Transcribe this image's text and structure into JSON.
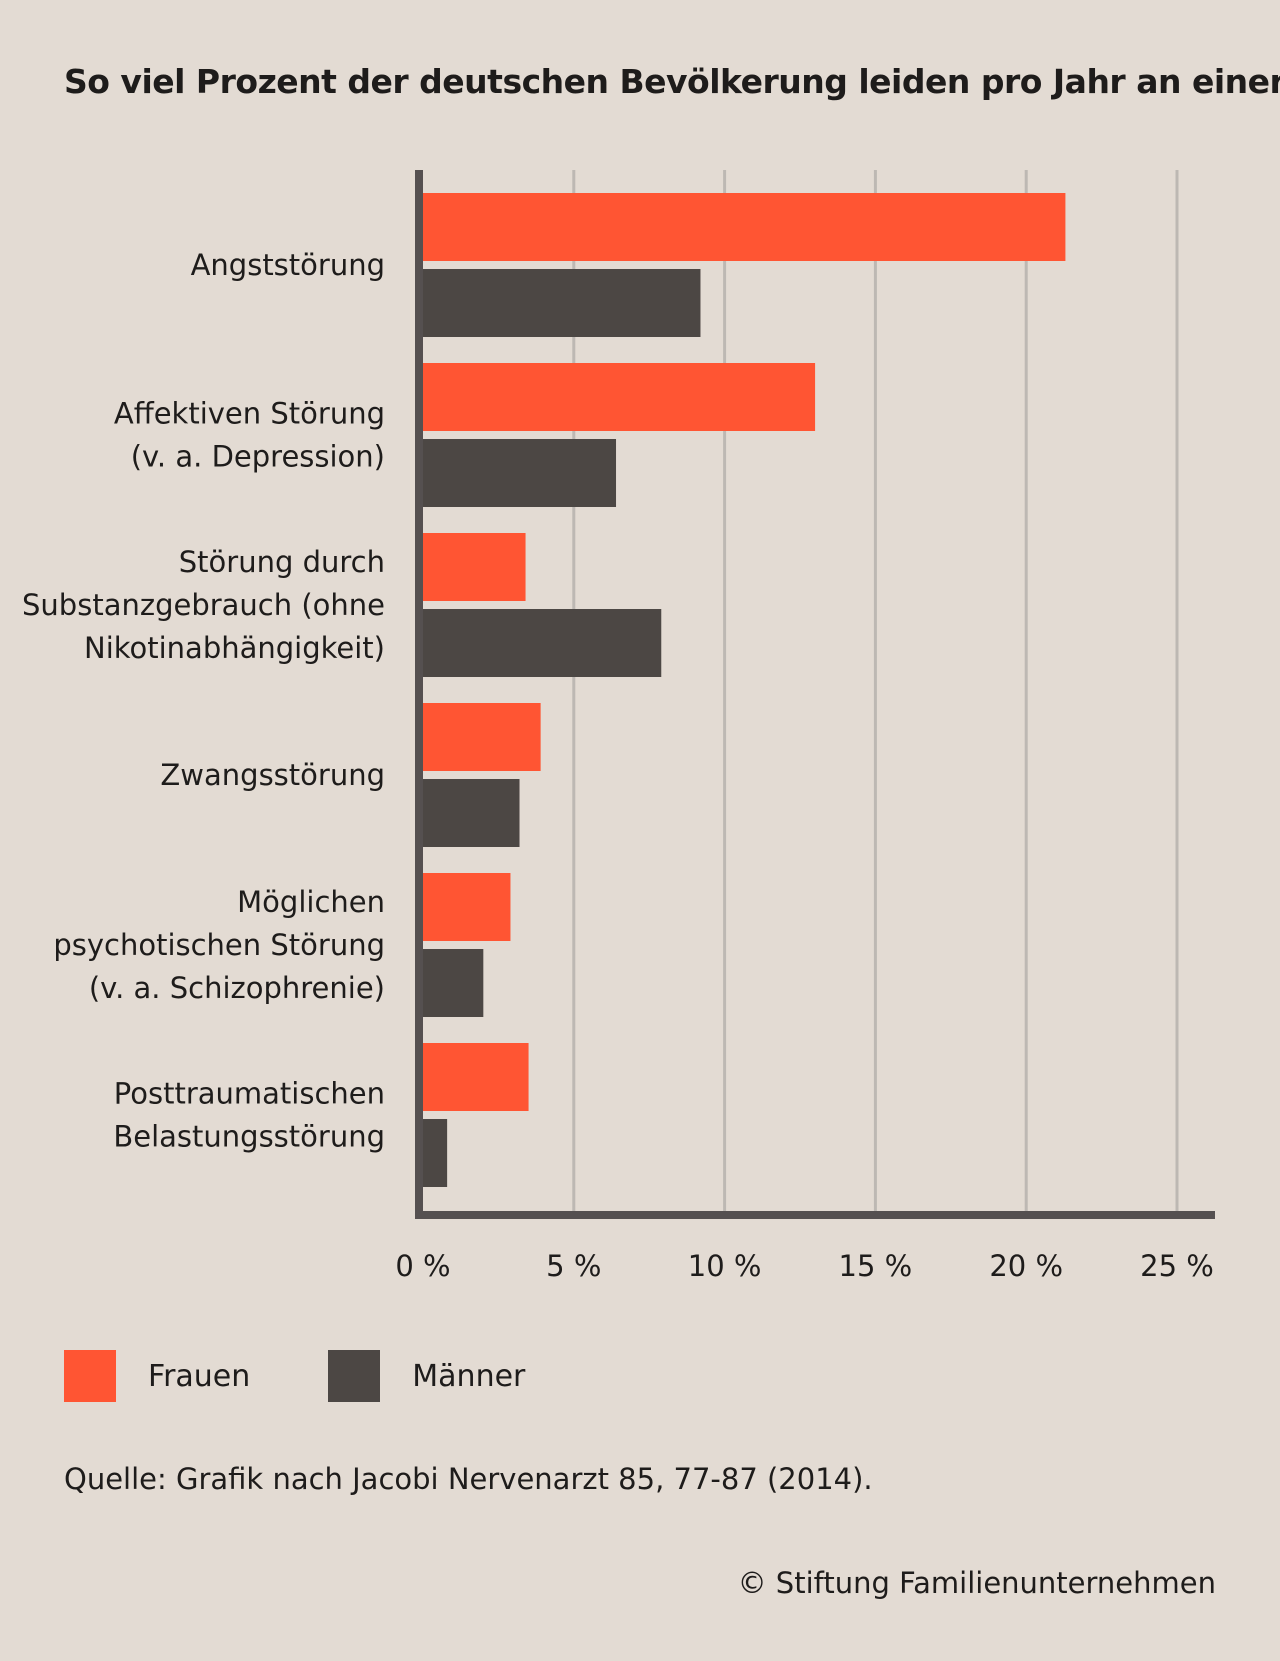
{
  "title": "So viel Prozent der deutschen Bevölkerung leiden pro Jahr an einer ...",
  "chart_data": {
    "type": "bar",
    "orientation": "horizontal",
    "title": "So viel Prozent der deutschen Bevölkerung leiden pro Jahr an einer ...",
    "categories": [
      [
        "Angststörung"
      ],
      [
        "Affektiven Störung",
        "(v. a. Depression)"
      ],
      [
        "Störung durch",
        "Substanzgebrauch (ohne",
        "Nikotinabhängigkeit)"
      ],
      [
        "Zwangsstörung"
      ],
      [
        "Möglichen",
        "psychotischen Störung",
        "(v. a. Schizophrenie)"
      ],
      [
        "Posttraumatischen",
        "Belastungsstörung"
      ]
    ],
    "series": [
      {
        "name": "Frauen",
        "color": "#ff5533",
        "values": [
          21.3,
          13.0,
          3.4,
          3.9,
          2.9,
          3.5
        ]
      },
      {
        "name": "Männer",
        "color": "#4c4744",
        "values": [
          9.2,
          6.4,
          7.9,
          3.2,
          2.0,
          0.8
        ]
      }
    ],
    "xlim": [
      0,
      25
    ],
    "xticks": [
      0,
      5,
      10,
      15,
      20,
      25
    ],
    "xtick_labels": [
      "0 %",
      "5 %",
      "10 %",
      "15 %",
      "20 %",
      "25 %"
    ],
    "grid": true,
    "legend_position": "bottom-left"
  },
  "legend": [
    {
      "label": "Frauen",
      "color": "#ff5533"
    },
    {
      "label": "Männer",
      "color": "#4c4744"
    }
  ],
  "source": "Quelle: Grafik nach Jacobi Nervenarzt 85, 77-87 (2014).",
  "copyright": "© Stiftung Familienunternehmen"
}
